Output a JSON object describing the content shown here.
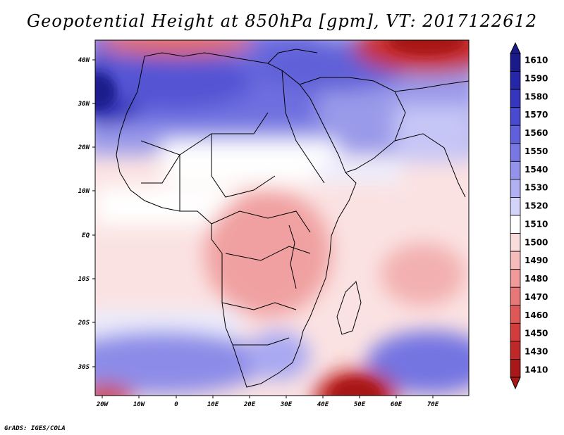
{
  "title": "Geopotential Height at 850hPa [gpm], VT: 2017122612",
  "credit": "GrADS: IGES/COLA",
  "x_ticks": [
    "20W",
    "10W",
    "0",
    "10E",
    "20E",
    "30E",
    "40E",
    "50E",
    "60E",
    "70E"
  ],
  "y_ticks": [
    "40N",
    "30N",
    "20N",
    "10N",
    "EQ",
    "10S",
    "20S",
    "30S"
  ],
  "colorbar": {
    "labels": [
      "1610",
      "1590",
      "1580",
      "1570",
      "1560",
      "1550",
      "1540",
      "1530",
      "1520",
      "1510",
      "1500",
      "1490",
      "1480",
      "1470",
      "1460",
      "1450",
      "1430",
      "1410"
    ],
    "colors": [
      "#1a1a8c",
      "#2626a8",
      "#3535bf",
      "#4a4ad1",
      "#6060dc",
      "#7878e4",
      "#9393ec",
      "#b0b0f3",
      "#d4d4fa",
      "#ffffff",
      "#fbdcdc",
      "#f6bcbc",
      "#f09a9a",
      "#e87878",
      "#df5858",
      "#d33c3c",
      "#c02828",
      "#a81818"
    ]
  }
}
